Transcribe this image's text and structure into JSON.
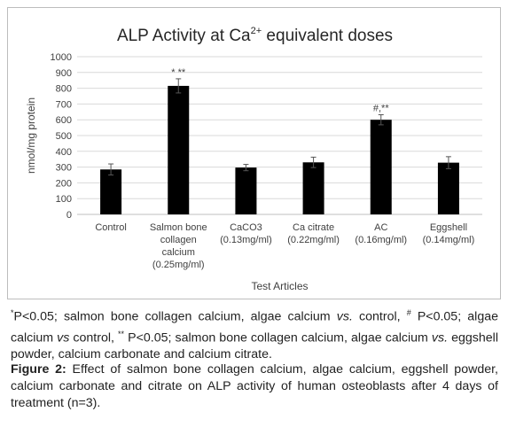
{
  "chart_data": {
    "type": "bar",
    "title_main": "ALP Activity at Ca",
    "title_sup": "2+",
    "title_rest": " equivalent doses",
    "ylabel": "nmol/mg protein",
    "xlabel": "Test Articles",
    "ylim": [
      0,
      1000
    ],
    "yticks": [
      0,
      100,
      200,
      300,
      400,
      500,
      600,
      700,
      800,
      900,
      1000
    ],
    "categories": [
      [
        "Control"
      ],
      [
        "Salmon bone",
        "collagen",
        "calcium",
        "(0.25mg/ml)"
      ],
      [
        "CaCO3",
        "(0.13mg/ml)"
      ],
      [
        "Ca citrate",
        "(0.22mg/ml)"
      ],
      [
        "AC",
        "(0.16mg/ml)"
      ],
      [
        "Eggshell",
        "(0.14mg/ml)"
      ]
    ],
    "values": [
      285,
      815,
      297,
      330,
      600,
      328
    ],
    "errors": [
      35,
      45,
      20,
      33,
      32,
      38
    ],
    "annotations": [
      "",
      "* **",
      "",
      "",
      "#,**",
      ""
    ],
    "bar_color": "#000000",
    "grid": true
  },
  "caption": {
    "note_mark1": "*",
    "note_p1": "P<0.05; salmon bone collagen calcium, algae calcium ",
    "note_vs1": "vs.",
    "note_p2": " control, ",
    "note_mark2": "#",
    "note_p3": " P<0.05; algae calcium ",
    "note_vs2": "vs",
    "note_p4": " control, ",
    "note_mark3": "**",
    "note_p5": " P<0.05; salmon bone collagen calcium, algae calcium ",
    "note_vs3": "vs.",
    "note_p6": " eggshell powder, calcium carbonate and calcium citrate.",
    "figure_label": "Figure 2:",
    "figure_text": " Effect of salmon bone collagen calcium, algae calcium, eggshell powder, calcium carbonate and citrate on ALP activity of human osteoblasts after 4 days of treatment (n=3)."
  }
}
